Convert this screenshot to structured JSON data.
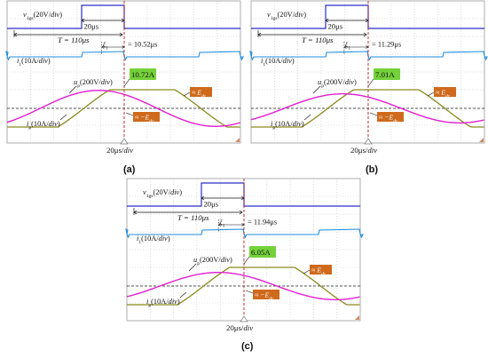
{
  "colors": {
    "ch_vgs": "#2c2cc8",
    "ch_i1": "#1f8de0",
    "ch_up": "#8a8a1e",
    "ch_ip": "#e21fd0",
    "grid": "#c4c4c4",
    "time_marker": "#c81e1e",
    "label_current_bg": "#74d13a",
    "label_e_bg": "#cf6a1c"
  },
  "chart_data": [
    {
      "type": "line",
      "caption": "(a)",
      "labels": {
        "vgs": "v",
        "vgs_sub": "1gs",
        "vgs_scale": "(20V/",
        "i1": "i",
        "i1_sub": "1",
        "i1_scale": "(10A/",
        "up": "u",
        "up_sub": "p",
        "up_scale": "(200V/",
        "ip": "i",
        "ip_sub": "p",
        "ip_scale": "(10A/",
        "div": "div",
        "close": ")",
        "x_scale": "20μs/",
        "x_div": "div",
        "period": "T = 110μs",
        "pulse_width": "20μs",
        "delay_sym": "ξ",
        "delay_sub": "1",
        "delay_value": "= 10.52μs",
        "current_callout": "10.72A",
        "e_pos": "≈ E",
        "e_pos_sub": "dc",
        "e_neg": "≈ −E",
        "e_neg_sub": "dc"
      },
      "delay_us": 10.52,
      "peak_current_A": 10.72
    },
    {
      "type": "line",
      "caption": "(b)",
      "labels": {
        "vgs": "v",
        "vgs_sub": "1gs",
        "vgs_scale": "(20V/",
        "i1": "i",
        "i1_sub": "1",
        "i1_scale": "(10A/",
        "up": "u",
        "up_sub": "p",
        "up_scale": "(200V/",
        "ip": "i",
        "ip_sub": "p",
        "ip_scale": "(10A/",
        "div": "div",
        "close": ")",
        "x_scale": "20μs/",
        "x_div": "div",
        "period": "T = 110μs",
        "pulse_width": "20μs",
        "delay_sym": "ξ",
        "delay_sub": "1",
        "delay_value": "= 11.29μs",
        "current_callout": "7.01A",
        "e_pos": "≈ E",
        "e_pos_sub": "dc",
        "e_neg": "≈ −E",
        "e_neg_sub": "dc"
      },
      "delay_us": 11.29,
      "peak_current_A": 7.01
    },
    {
      "type": "line",
      "caption": "(c)",
      "labels": {
        "vgs": "v",
        "vgs_sub": "1gs",
        "vgs_scale": "(20V/",
        "i1": "i",
        "i1_sub": "1",
        "i1_scale": "(10A/",
        "up": "u",
        "up_sub": "p",
        "up_scale": "(200V/",
        "ip": "i",
        "ip_sub": "p",
        "ip_scale": "(10A/",
        "div": "div",
        "close": ")",
        "x_scale": "20μs/",
        "x_div": "div",
        "period": "T = 110μs",
        "pulse_width": "20μs",
        "delay_sym": "ξ",
        "delay_sub": "1",
        "delay_value": "= 11.94μs",
        "current_callout": "6.05A",
        "e_pos": "≈ E",
        "e_pos_sub": "dc",
        "e_neg": "≈ −E",
        "e_neg_sub": "dc"
      },
      "delay_us": 11.94,
      "peak_current_A": 6.05
    }
  ]
}
